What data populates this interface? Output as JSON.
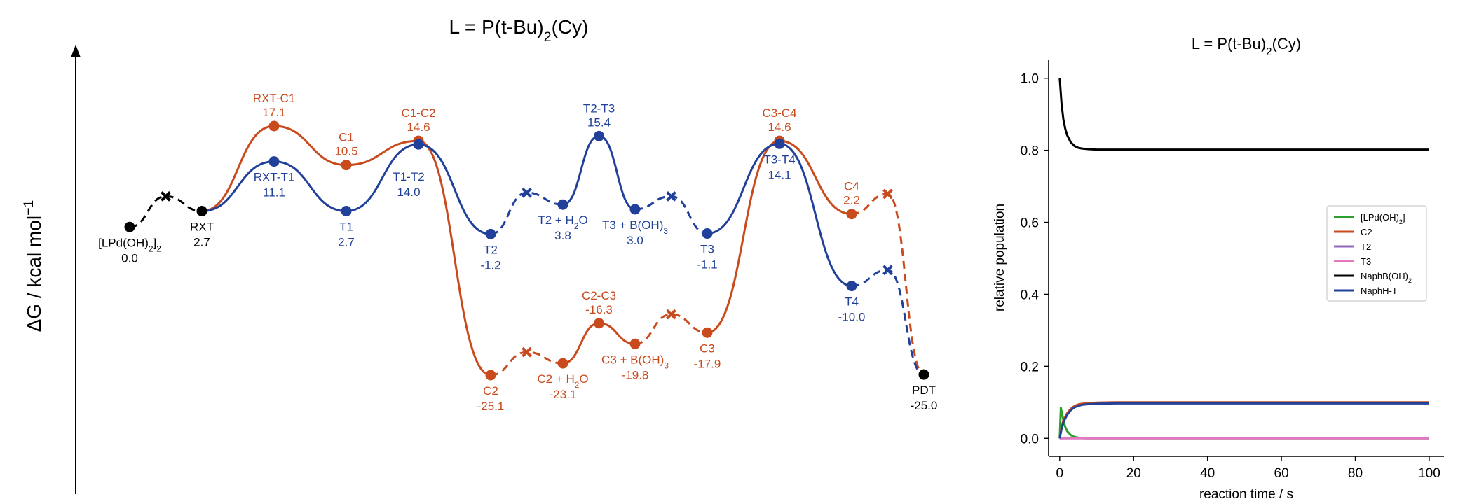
{
  "chart_data": [
    {
      "type": "line",
      "subtype": "free-energy-profile",
      "title": "L = P(t-Bu)",
      "title_sub": "2",
      "title_tail": "(Cy)",
      "ylabel": "ΔG / kcal mol",
      "ylabel_sup": "−1",
      "ylim": [
        -25.1,
        17.1
      ],
      "points": [
        {
          "id": "p0",
          "x": 0.0,
          "y": 0.0,
          "kind": "min",
          "color": "#000000",
          "label": "[LPd(OH)",
          "label_sub": "2",
          "label_tail": "]",
          "label_sub2": "2",
          "value": "0.0",
          "label_pos": "below"
        },
        {
          "id": "p1",
          "x": 0.5,
          "y": 5.2,
          "kind": "ts-x",
          "color": "#000000"
        },
        {
          "id": "p2",
          "x": 1.0,
          "y": 2.7,
          "kind": "min",
          "color": "#000000",
          "label": "RXT",
          "value": "2.7",
          "label_pos": "below"
        },
        {
          "id": "o_rxtc1",
          "x": 2.0,
          "y": 17.1,
          "kind": "ts",
          "color": "#c94a1c",
          "label": "RXT-C1",
          "value": "17.1",
          "label_pos": "above"
        },
        {
          "id": "o_c1",
          "x": 3.0,
          "y": 10.5,
          "kind": "min",
          "color": "#c94a1c",
          "label": "C1",
          "value": "10.5",
          "label_pos": "above"
        },
        {
          "id": "o_c1c2",
          "x": 4.0,
          "y": 14.6,
          "kind": "ts",
          "color": "#c94a1c",
          "label": "C1-C2",
          "value": "14.6",
          "label_pos": "above"
        },
        {
          "id": "o_c2",
          "x": 5.0,
          "y": -25.1,
          "kind": "min",
          "color": "#c94a1c",
          "label": "C2",
          "value": "-25.1",
          "label_pos": "below"
        },
        {
          "id": "o_x1",
          "x": 5.5,
          "y": -21.2,
          "kind": "ts-x",
          "color": "#c94a1c"
        },
        {
          "id": "o_c2h2o",
          "x": 6.0,
          "y": -23.1,
          "kind": "min",
          "color": "#c94a1c",
          "label": "C2 + H",
          "label_sub": "2",
          "label_tail": "O",
          "value": "-23.1",
          "label_pos": "below"
        },
        {
          "id": "o_c2c3",
          "x": 6.5,
          "y": -16.3,
          "kind": "ts",
          "color": "#c94a1c",
          "label": "C2-C3",
          "value": "-16.3",
          "label_pos": "above"
        },
        {
          "id": "o_c3boh",
          "x": 7.0,
          "y": -19.8,
          "kind": "min",
          "color": "#c94a1c",
          "label": "C3 + B(OH)",
          "label_sub": "3",
          "value": "-19.8",
          "label_pos": "below"
        },
        {
          "id": "o_x2",
          "x": 7.5,
          "y": -14.8,
          "kind": "ts-x",
          "color": "#c94a1c"
        },
        {
          "id": "o_c3",
          "x": 8.0,
          "y": -17.9,
          "kind": "min",
          "color": "#c94a1c",
          "label": "C3",
          "value": "-17.9",
          "label_pos": "below"
        },
        {
          "id": "o_c3c4",
          "x": 9.0,
          "y": 14.6,
          "kind": "ts",
          "color": "#c94a1c",
          "label": "C3-C4",
          "value": "14.6",
          "label_pos": "above"
        },
        {
          "id": "o_c4",
          "x": 10.0,
          "y": 2.2,
          "kind": "min",
          "color": "#c94a1c",
          "label": "C4",
          "value": "2.2",
          "label_pos": "above"
        },
        {
          "id": "o_x3",
          "x": 10.5,
          "y": 5.6,
          "kind": "ts-x",
          "color": "#c94a1c"
        },
        {
          "id": "b_rxtt1",
          "x": 2.0,
          "y": 11.1,
          "kind": "ts",
          "color": "#21409a",
          "label": "RXT-T1",
          "value": "11.1",
          "label_pos": "below"
        },
        {
          "id": "b_t1",
          "x": 3.0,
          "y": 2.7,
          "kind": "min",
          "color": "#21409a",
          "label": "T1",
          "value": "2.7",
          "label_pos": "below"
        },
        {
          "id": "b_t1t2",
          "x": 4.0,
          "y": 14.0,
          "kind": "ts",
          "color": "#21409a",
          "label": "T1-T2",
          "value": "14.0",
          "label_pos": "below-left"
        },
        {
          "id": "b_t2",
          "x": 5.0,
          "y": -1.2,
          "kind": "min",
          "color": "#21409a",
          "label": "T2",
          "value": "-1.2",
          "label_pos": "below"
        },
        {
          "id": "b_x1",
          "x": 5.5,
          "y": 5.8,
          "kind": "ts-x",
          "color": "#21409a"
        },
        {
          "id": "b_t2h2o",
          "x": 6.0,
          "y": 3.8,
          "kind": "min",
          "color": "#21409a",
          "label": "T2 + H",
          "label_sub": "2",
          "label_tail": "O",
          "value": "3.8",
          "label_pos": "below"
        },
        {
          "id": "b_t2t3",
          "x": 6.5,
          "y": 15.4,
          "kind": "ts",
          "color": "#21409a",
          "label": "T2-T3",
          "value": "15.4",
          "label_pos": "above"
        },
        {
          "id": "b_t3boh",
          "x": 7.0,
          "y": 3.0,
          "kind": "min",
          "color": "#21409a",
          "label": "T3 + B(OH)",
          "label_sub": "3",
          "value": "3.0",
          "label_pos": "below"
        },
        {
          "id": "b_x2",
          "x": 7.5,
          "y": 5.2,
          "kind": "ts-x",
          "color": "#21409a"
        },
        {
          "id": "b_t3",
          "x": 8.0,
          "y": -1.1,
          "kind": "min",
          "color": "#21409a",
          "label": "T3",
          "value": "-1.1",
          "label_pos": "below"
        },
        {
          "id": "b_t3t4",
          "x": 9.0,
          "y": 14.1,
          "kind": "ts",
          "color": "#21409a",
          "label": "T3-T4",
          "value": "14.1",
          "label_pos": "below"
        },
        {
          "id": "b_t4",
          "x": 10.0,
          "y": -10.0,
          "kind": "min",
          "color": "#21409a",
          "label": "T4",
          "value": "-10.0",
          "label_pos": "below"
        },
        {
          "id": "b_x3",
          "x": 10.5,
          "y": -7.3,
          "kind": "ts-x",
          "color": "#21409a"
        },
        {
          "id": "pdt",
          "x": 11.0,
          "y": -25.0,
          "kind": "min",
          "color": "#000000",
          "label": "PDT",
          "value": "-25.0",
          "label_pos": "below"
        }
      ],
      "segments": [
        {
          "from": "p0",
          "to": "p1",
          "style": "dashed",
          "color": "#000000"
        },
        {
          "from": "p1",
          "to": "p2",
          "style": "dashed",
          "color": "#000000"
        },
        {
          "path": [
            "p2",
            "o_rxtc1",
            "o_c1",
            "o_c1c2",
            "o_c2"
          ],
          "style": "solid",
          "color": "#c94a1c"
        },
        {
          "path": [
            "o_c2",
            "o_x1",
            "o_c2h2o"
          ],
          "style": "dashed",
          "color": "#c94a1c"
        },
        {
          "path": [
            "o_c2h2o",
            "o_c2c3",
            "o_c3boh"
          ],
          "style": "solid",
          "color": "#c94a1c"
        },
        {
          "path": [
            "o_c3boh",
            "o_x2",
            "o_c3"
          ],
          "style": "dashed",
          "color": "#c94a1c"
        },
        {
          "path": [
            "o_c3",
            "o_c3c4",
            "o_c4"
          ],
          "style": "solid",
          "color": "#c94a1c"
        },
        {
          "path": [
            "o_c4",
            "o_x3",
            "pdt"
          ],
          "style": "dashed",
          "color": "#c94a1c"
        },
        {
          "path": [
            "p2",
            "b_rxtt1",
            "b_t1",
            "b_t1t2",
            "b_t2"
          ],
          "style": "solid",
          "color": "#21409a"
        },
        {
          "path": [
            "b_t2",
            "b_x1",
            "b_t2h2o"
          ],
          "style": "dashed",
          "color": "#21409a"
        },
        {
          "path": [
            "b_t2h2o",
            "b_t2t3",
            "b_t3boh"
          ],
          "style": "solid",
          "color": "#21409a"
        },
        {
          "path": [
            "b_t3boh",
            "b_x2",
            "b_t3"
          ],
          "style": "dashed",
          "color": "#21409a"
        },
        {
          "path": [
            "b_t3",
            "b_t3t4",
            "b_t4"
          ],
          "style": "solid",
          "color": "#21409a"
        },
        {
          "path": [
            "b_t4",
            "b_x3",
            "pdt"
          ],
          "style": "dashed",
          "color": "#21409a"
        }
      ]
    },
    {
      "type": "line",
      "title": "L = P(t-Bu)",
      "title_sub": "2",
      "title_tail": "(Cy)",
      "xlabel": "reaction time / s",
      "ylabel": "relative population",
      "xlim": [
        -3,
        104
      ],
      "ylim": [
        -0.05,
        1.05
      ],
      "xticks": [
        0,
        20,
        40,
        60,
        80,
        100
      ],
      "yticks": [
        0.0,
        0.2,
        0.4,
        0.6,
        0.8,
        1.0
      ],
      "xtick_labels": [
        "0",
        "20",
        "40",
        "60",
        "80",
        "100"
      ],
      "ytick_labels": [
        "0.0",
        "0.2",
        "0.4",
        "0.6",
        "0.8",
        "1.0"
      ],
      "legend_position": "center-right",
      "series": [
        {
          "name": "[LPd(OH)",
          "name_sub": "2",
          "name_tail": "]",
          "color": "#2ca02c",
          "x": [
            0,
            0.3,
            0.6,
            1,
            1.5,
            2,
            3,
            4,
            5,
            7,
            10,
            20,
            50,
            100
          ],
          "y": [
            0,
            0.085,
            0.07,
            0.05,
            0.032,
            0.02,
            0.009,
            0.004,
            0.002,
            0,
            0,
            0,
            0,
            0
          ]
        },
        {
          "name": "C2",
          "color": "#c94a1c",
          "x": [
            0,
            0.5,
            1,
            2,
            3,
            4,
            5,
            6,
            8,
            10,
            15,
            20,
            50,
            100
          ],
          "y": [
            0,
            0.03,
            0.05,
            0.07,
            0.082,
            0.09,
            0.094,
            0.096,
            0.098,
            0.099,
            0.1,
            0.1,
            0.1,
            0.1
          ]
        },
        {
          "name": "T2",
          "color": "#9467bd",
          "x": [
            0,
            5,
            20,
            50,
            100
          ],
          "y": [
            0,
            0.001,
            0.001,
            0.001,
            0.001
          ]
        },
        {
          "name": "T3",
          "color": "#e377c2",
          "x": [
            0,
            5,
            20,
            50,
            100
          ],
          "y": [
            0,
            0,
            0,
            0,
            0
          ]
        },
        {
          "name": "NaphB(OH)",
          "name_sub": "2",
          "color": "#000000",
          "x": [
            0,
            0.5,
            1,
            1.5,
            2,
            3,
            4,
            5,
            6,
            8,
            10,
            15,
            20,
            50,
            100
          ],
          "y": [
            1.0,
            0.93,
            0.885,
            0.86,
            0.842,
            0.822,
            0.812,
            0.807,
            0.805,
            0.803,
            0.802,
            0.802,
            0.802,
            0.802,
            0.802
          ]
        },
        {
          "name": "NaphH-T",
          "color": "#21409a",
          "x": [
            0,
            0.5,
            1,
            2,
            3,
            4,
            5,
            6,
            8,
            10,
            15,
            20,
            50,
            100
          ],
          "y": [
            0,
            0.025,
            0.045,
            0.065,
            0.078,
            0.086,
            0.09,
            0.093,
            0.095,
            0.096,
            0.097,
            0.097,
            0.097,
            0.097
          ]
        }
      ]
    }
  ]
}
